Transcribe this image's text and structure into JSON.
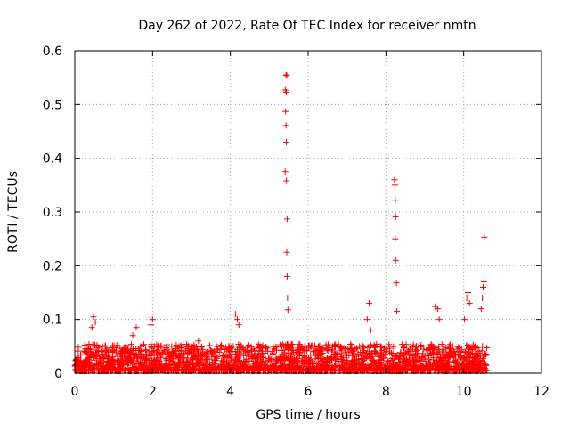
{
  "chart_data": {
    "type": "scatter",
    "title": "Day 262 of 2022, Rate Of TEC Index for receiver nmtn",
    "xlabel": "GPS time / hours",
    "ylabel": "ROTI / TECUs",
    "xlim": [
      0,
      12
    ],
    "ylim": [
      0,
      0.6
    ],
    "grid": true,
    "x_ticks": [
      0,
      2,
      4,
      6,
      8,
      10,
      12
    ],
    "y_ticks": [
      0,
      0.1,
      0.2,
      0.3,
      0.4,
      0.5,
      0.6
    ],
    "x_tick_labels": [
      "0",
      "2",
      "4",
      "6",
      "8",
      "10",
      "12"
    ],
    "y_tick_labels": [
      "0",
      "0.1",
      "0.2",
      "0.3",
      "0.4",
      "0.5",
      "0.6"
    ],
    "marker": "plus",
    "marker_color": "#ff0000",
    "series": [
      {
        "name": "ROTI",
        "x": [
          5.43,
          5.45,
          5.41,
          5.44,
          5.42,
          5.43,
          5.44,
          5.41,
          5.44,
          5.46,
          5.45,
          5.46,
          5.47,
          5.48,
          8.22,
          8.23,
          8.24,
          8.25,
          8.24,
          8.25,
          8.27,
          8.28,
          10.53,
          10.52,
          10.5,
          10.48,
          10.45,
          10.11,
          10.08,
          10.15,
          10.02,
          9.27,
          9.33,
          9.37,
          7.57,
          7.52,
          7.61,
          4.13,
          4.18,
          4.22,
          2.0,
          1.96,
          0.48,
          0.53,
          0.44,
          1.58,
          1.49,
          3.18
        ],
        "y": [
          0.555,
          0.554,
          0.527,
          0.523,
          0.487,
          0.461,
          0.43,
          0.375,
          0.358,
          0.287,
          0.225,
          0.18,
          0.14,
          0.118,
          0.36,
          0.35,
          0.322,
          0.291,
          0.25,
          0.21,
          0.168,
          0.115,
          0.253,
          0.17,
          0.16,
          0.14,
          0.12,
          0.15,
          0.14,
          0.13,
          0.1,
          0.124,
          0.12,
          0.1,
          0.13,
          0.1,
          0.08,
          0.11,
          0.1,
          0.09,
          0.1,
          0.09,
          0.105,
          0.095,
          0.085,
          0.085,
          0.07,
          0.06
        ]
      }
    ],
    "noise_band": {
      "x_range": [
        0,
        10.6
      ],
      "y_typical_max": 0.05
    }
  }
}
